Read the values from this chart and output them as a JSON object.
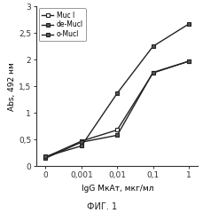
{
  "title": "",
  "xlabel": "IgG МкАт, мкг/мл",
  "ylabel": "Abs, 492 нм",
  "caption": "ФИГ. 1",
  "x_labels": [
    "0",
    "0,001",
    "0,01",
    "0,1",
    "1"
  ],
  "series": [
    {
      "label": "Muc I",
      "values": [
        0.17,
        0.47,
        0.68,
        1.75,
        1.97
      ],
      "color": "#222222",
      "marker": "s",
      "markerfacecolor": "white",
      "linewidth": 1.0
    },
    {
      "label": "de-Mucl",
      "values": [
        0.15,
        0.45,
        0.58,
        1.76,
        1.97
      ],
      "color": "#222222",
      "marker": "s",
      "markerfacecolor": "#555555",
      "linewidth": 1.0
    },
    {
      "label": "o-Mucl",
      "values": [
        0.18,
        0.38,
        1.37,
        2.25,
        2.67
      ],
      "color": "#222222",
      "marker": "s",
      "markerfacecolor": "#555555",
      "linewidth": 1.0
    }
  ],
  "ylim": [
    0,
    3.0
  ],
  "yticks": [
    0,
    0.5,
    1.0,
    1.5,
    2.0,
    2.5,
    3.0
  ],
  "ytick_labels": [
    "0",
    "0,5",
    "1",
    "1,5",
    "2",
    "2,5",
    "3"
  ],
  "background_color": "#ffffff",
  "fontsize": 6.5
}
